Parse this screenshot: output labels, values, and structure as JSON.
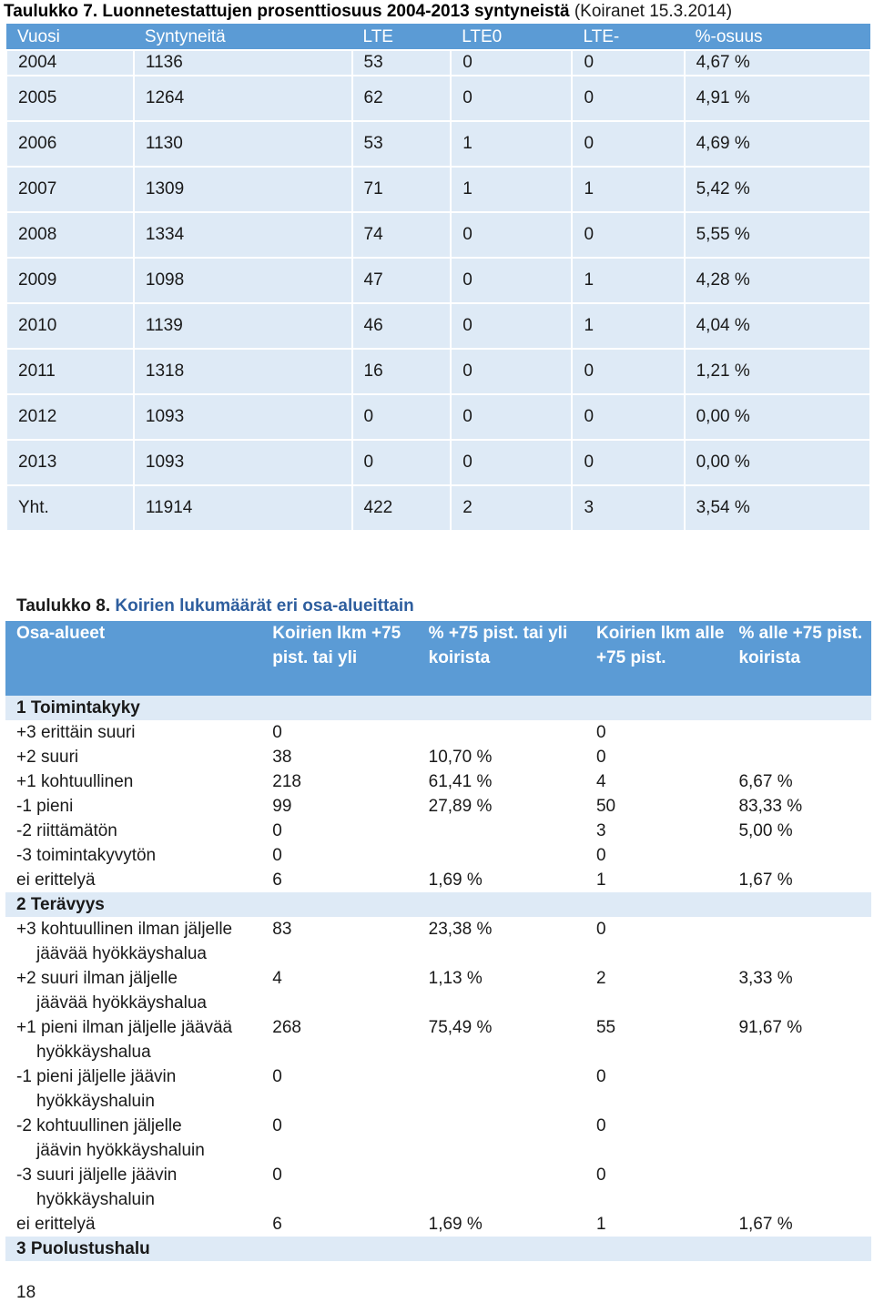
{
  "table7": {
    "title_bold": "Taulukko 7. Luonnetestattujen prosenttiosuus 2004-2013 syntyneistä",
    "title_rest": " (Koiranet 15.3.2014)",
    "headers": [
      "Vuosi",
      "Syntyneitä",
      "LTE",
      "LTE0",
      "LTE-",
      "%-osuus"
    ],
    "rows": [
      [
        "2004",
        "1136",
        "53",
        "0",
        "0",
        "4,67 %"
      ],
      [
        "2005",
        "1264",
        "62",
        "0",
        "0",
        "4,91 %"
      ],
      [
        "2006",
        "1130",
        "53",
        "1",
        "0",
        "4,69 %"
      ],
      [
        "2007",
        "1309",
        "71",
        "1",
        "1",
        "5,42 %"
      ],
      [
        "2008",
        "1334",
        "74",
        "0",
        "0",
        "5,55 %"
      ],
      [
        "2009",
        "1098",
        "47",
        "0",
        "1",
        "4,28 %"
      ],
      [
        "2010",
        "1139",
        "46",
        "0",
        "1",
        "4,04 %"
      ],
      [
        "2011",
        "1318",
        "16",
        "0",
        "0",
        "1,21 %"
      ],
      [
        "2012",
        "1093",
        "0",
        "0",
        "0",
        "0,00 %"
      ],
      [
        "2013",
        "1093",
        "0",
        "0",
        "0",
        "0,00 %"
      ],
      [
        "Yht.",
        "11914",
        "422",
        "2",
        "3",
        "3,54 %"
      ]
    ]
  },
  "table8": {
    "title_prefix": "Taulukko 8.",
    "title_rest": " Koirien lukumäärät eri osa-alueittain",
    "headers": [
      "Osa-alueet",
      "Koirien lkm +75 pist. tai yli",
      "% +75 pist. tai yli koirista",
      "Koirien lkm alle +75 pist.",
      "% alle +75 pist. koirista"
    ],
    "sections": [
      {
        "name": "1 Toimintakyky",
        "rows": [
          [
            "+3 erittäin suuri",
            "0",
            "",
            "0",
            ""
          ],
          [
            "+2 suuri",
            "38",
            "10,70 %",
            "0",
            ""
          ],
          [
            "+1 kohtuullinen",
            "218",
            "61,41 %",
            "4",
            "6,67 %"
          ],
          [
            "-1 pieni",
            "99",
            "27,89 %",
            "50",
            "83,33 %"
          ],
          [
            "-2 riittämätön",
            "0",
            "",
            "3",
            "5,00 %"
          ],
          [
            "-3 toimintakyvytön",
            "0",
            "",
            "0",
            ""
          ],
          [
            "ei erittelyä",
            "6",
            "1,69 %",
            "1",
            "1,67 %"
          ]
        ]
      },
      {
        "name": "2 Terävyys",
        "rows": [
          [
            "+3 kohtuullinen ilman jäljelle",
            "jäävää hyökkäyshalua",
            "83",
            "23,38 %",
            "0",
            ""
          ],
          [
            "+2 suuri ilman jäljelle",
            "jäävää hyökkäyshalua",
            "4",
            "1,13 %",
            "2",
            "3,33 %"
          ],
          [
            "+1 pieni ilman jäljelle jäävää",
            "hyökkäyshalua",
            "268",
            "75,49 %",
            "55",
            "91,67 %"
          ],
          [
            "-1 pieni jäljelle jäävin",
            "hyökkäyshaluin",
            "0",
            "",
            "0",
            ""
          ],
          [
            "-2 kohtuullinen jäljelle",
            "jäävin hyökkäyshaluin",
            "0",
            "",
            "0",
            ""
          ],
          [
            "-3 suuri jäljelle jäävin",
            "hyökkäyshaluin",
            "0",
            "",
            "0",
            ""
          ]
        ],
        "last_row": [
          "ei erittelyä",
          "6",
          "1,69 %",
          "1",
          "1,67 %"
        ]
      },
      {
        "name": "3 Puolustushalu",
        "rows": []
      }
    ]
  },
  "page_number": "18"
}
